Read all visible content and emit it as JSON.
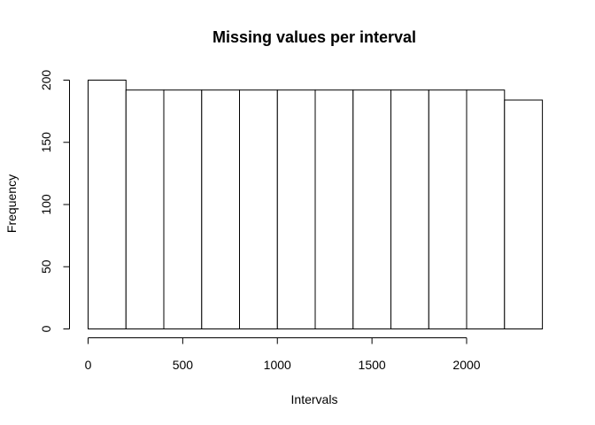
{
  "chart_data": {
    "type": "bar",
    "title": "Missing values per interval",
    "xlabel": "Intervals",
    "ylabel": "Frequency",
    "bin_edges": [
      0,
      200,
      400,
      600,
      800,
      1000,
      1200,
      1400,
      1600,
      1800,
      2000,
      2200,
      2400
    ],
    "values": [
      200,
      192,
      192,
      192,
      192,
      192,
      192,
      192,
      192,
      192,
      192,
      184
    ],
    "xlim": [
      0,
      2400
    ],
    "ylim": [
      0,
      200
    ],
    "x_ticks": [
      0,
      500,
      1000,
      1500,
      2000
    ],
    "y_ticks": [
      0,
      50,
      100,
      150,
      200
    ],
    "grid": false,
    "colors": {
      "bar_fill": "#ffffff",
      "bar_stroke": "#000000"
    }
  }
}
